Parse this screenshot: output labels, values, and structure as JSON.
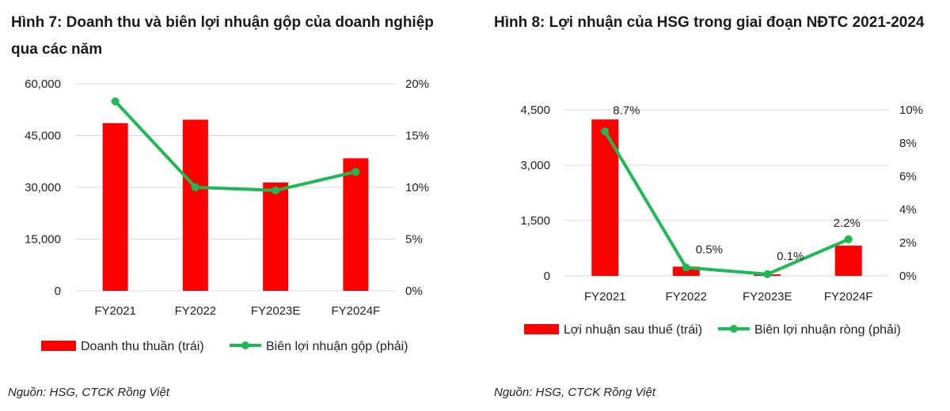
{
  "colors": {
    "bar": "#ff0000",
    "line": "#1db954",
    "grid": "#d9d9d9",
    "text": "#222222"
  },
  "figures": [
    {
      "title": "Hình 7: Doanh thu và biên lợi nhuận gộp của doanh nghiệp qua các năm",
      "source": "Nguồn: HSG, CTCK Rồng Việt"
    },
    {
      "title": "Hình 8: Lợi nhuận của HSG trong giai đoạn NĐTC 2021-2024",
      "source": "Nguồn: HSG, CTCK Rồng Việt"
    }
  ],
  "chart_data": [
    {
      "type": "bar",
      "title": "Hình 7: Doanh thu và biên lợi nhuận gộp của doanh nghiệp qua các năm",
      "categories": [
        "FY2021",
        "FY2022",
        "FY2023E",
        "FY2024F"
      ],
      "series": [
        {
          "name": "Doanh thu thuần (trái)",
          "type": "bar",
          "axis": "left",
          "values": [
            48600,
            49600,
            31400,
            38400
          ]
        },
        {
          "name": "Biên lợi nhuận gộp (phải)",
          "type": "line",
          "axis": "right",
          "values": [
            18.3,
            10.0,
            9.7,
            11.5
          ]
        }
      ],
      "y_left": {
        "min": 0,
        "max": 60000,
        "ticks": [
          0,
          15000,
          30000,
          45000,
          60000
        ],
        "tick_labels": [
          "0",
          "15,000",
          "30,000",
          "45,000",
          "60,000"
        ]
      },
      "y_right": {
        "min": 0,
        "max": 20,
        "ticks": [
          0,
          5,
          10,
          15,
          20
        ],
        "tick_labels": [
          "0%",
          "5%",
          "10%",
          "15%",
          "20%"
        ]
      },
      "data_labels": [],
      "grid": true,
      "legend": "bottom"
    },
    {
      "type": "bar",
      "title": "Hình 8: Lợi nhuận của HSG trong giai đoạn NĐTC 2021-2024",
      "categories": [
        "FY2021",
        "FY2022",
        "FY2023E",
        "FY2024F"
      ],
      "series": [
        {
          "name": "Lợi nhuận sau thuế (trái)",
          "type": "bar",
          "axis": "left",
          "values": [
            4240,
            250,
            40,
            820
          ]
        },
        {
          "name": "Biên lợi nhuận ròng (phải)",
          "type": "line",
          "axis": "right",
          "values": [
            8.7,
            0.5,
            0.1,
            2.2
          ]
        }
      ],
      "y_left": {
        "min": 0,
        "max": 4500,
        "ticks": [
          0,
          1500,
          3000,
          4500
        ],
        "tick_labels": [
          "0",
          "1,500",
          "3,000",
          "4,500"
        ]
      },
      "y_right": {
        "min": 0,
        "max": 10,
        "ticks": [
          0,
          2,
          4,
          6,
          8,
          10
        ],
        "tick_labels": [
          "0%",
          "2%",
          "4%",
          "6%",
          "8%",
          "10%"
        ]
      },
      "data_labels": [
        "8.7%",
        "0.5%",
        "0.1%",
        "2.2%"
      ],
      "grid": true,
      "legend": "bottom"
    }
  ]
}
